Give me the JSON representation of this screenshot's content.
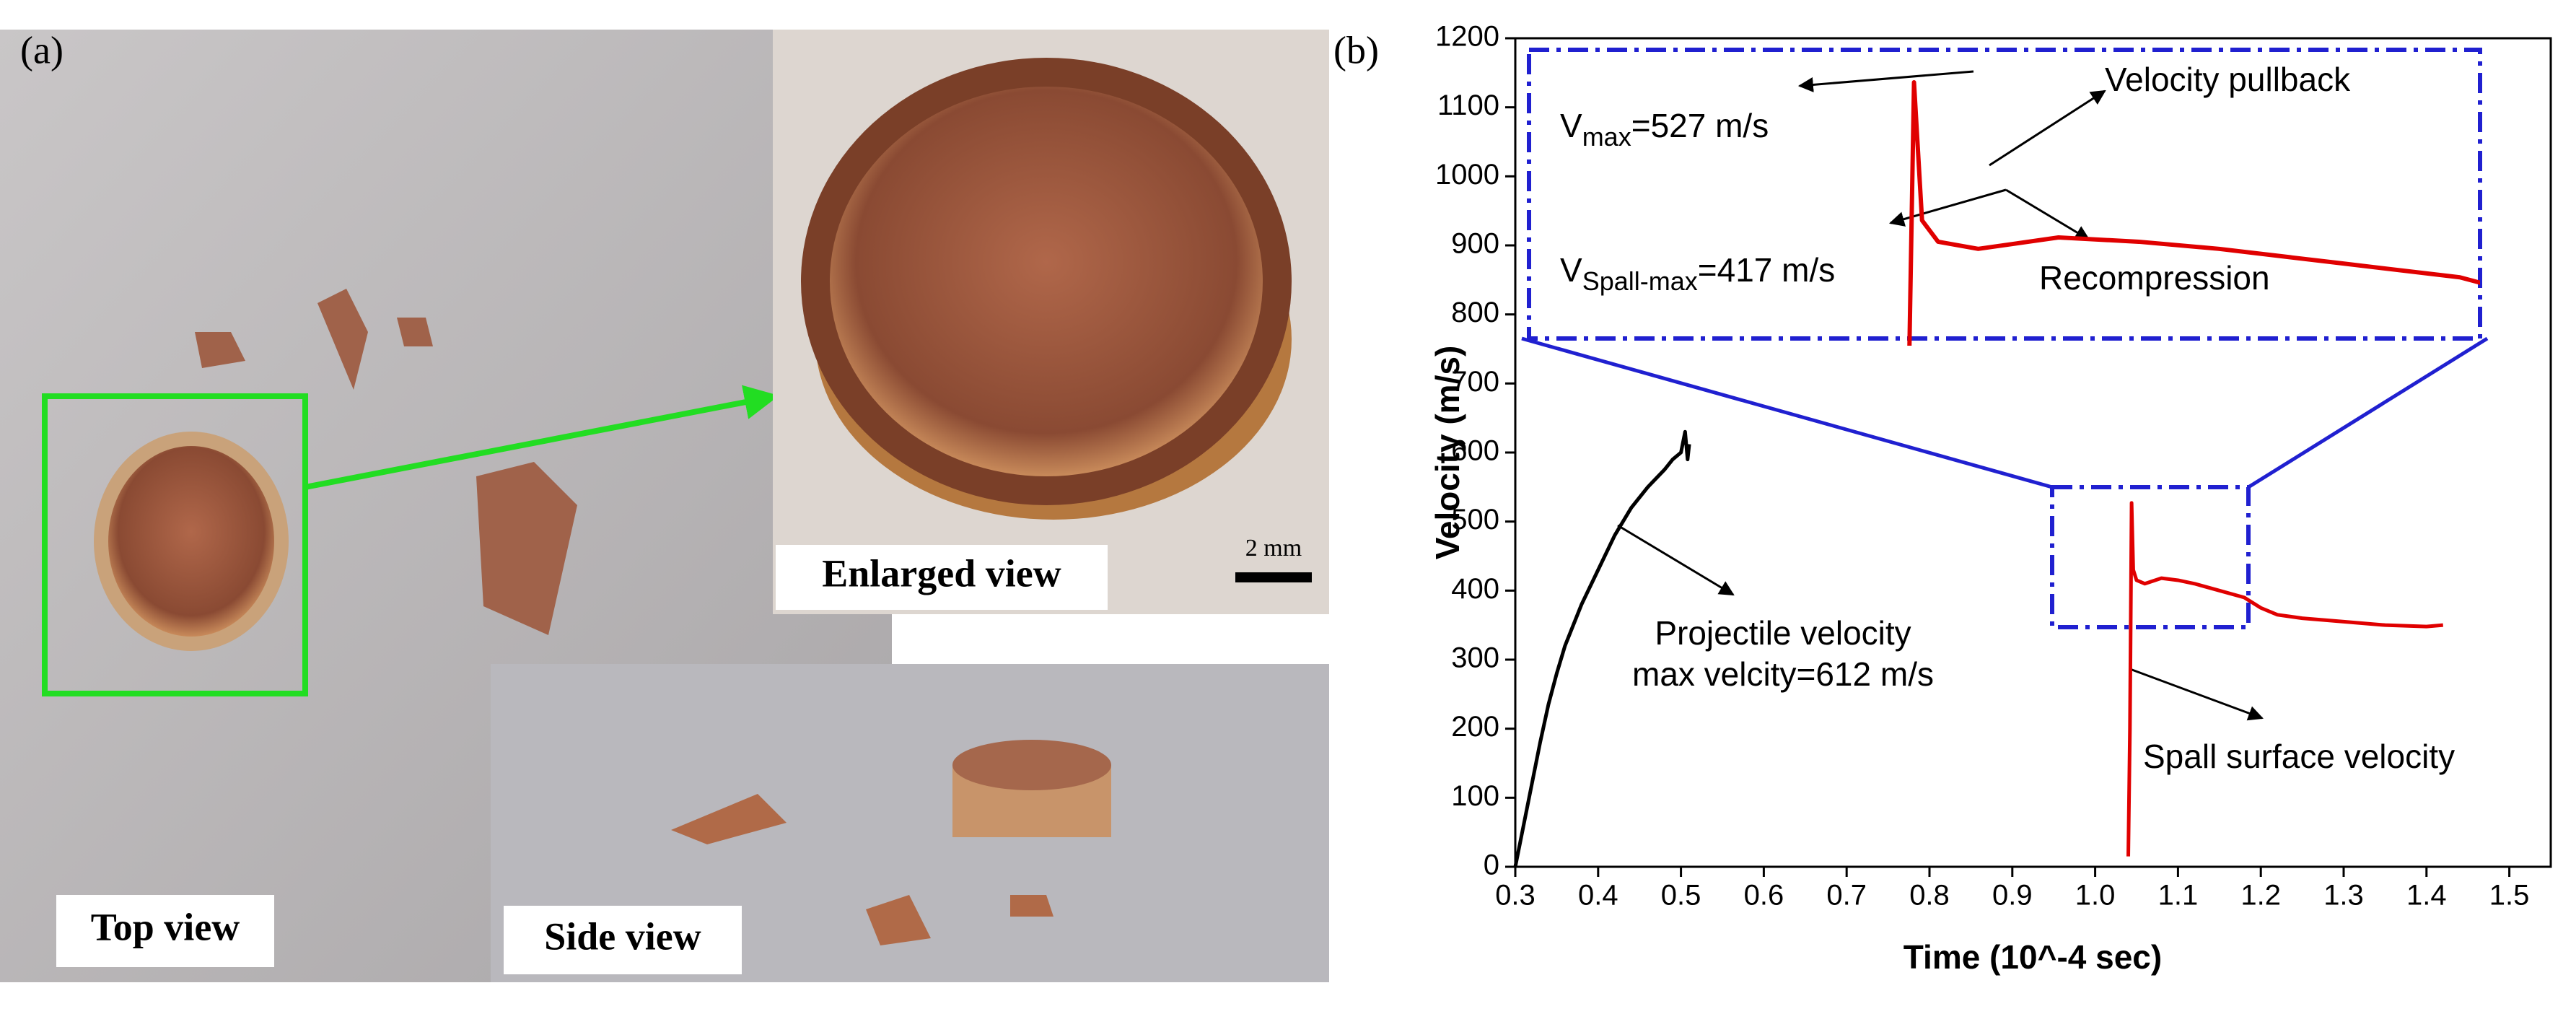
{
  "panel_labels": [
    "(a)",
    "(b)"
  ],
  "photo_labels": {
    "top": "Top view",
    "enlarged": "Enlarged view",
    "side": "Side view",
    "scale": "2 mm"
  },
  "chart_data": {
    "type": "line",
    "xlabel": "Time (10^-4 sec)",
    "ylabel": "Velocity (m/s)",
    "xlim": [
      0.3,
      1.55
    ],
    "ylim": [
      0,
      1200
    ],
    "xticks": [
      0.3,
      0.4,
      0.5,
      0.6,
      0.7,
      0.8,
      0.9,
      {
        "value": 1,
        "label": "1.0"
      },
      1.1,
      1.2,
      1.3,
      1.4,
      1.5
    ],
    "yticks": [
      0,
      100,
      200,
      300,
      400,
      500,
      600,
      700,
      800,
      900,
      1000,
      1100,
      1200
    ],
    "series": [
      {
        "name": "Projectile velocity",
        "color": "#000000",
        "x": [
          0.3,
          0.31,
          0.32,
          0.33,
          0.34,
          0.35,
          0.36,
          0.38,
          0.4,
          0.42,
          0.44,
          0.46,
          0.48,
          0.49,
          0.5,
          0.505,
          0.508,
          0.51
        ],
        "values": [
          0,
          60,
          120,
          180,
          235,
          280,
          320,
          380,
          430,
          480,
          520,
          550,
          575,
          590,
          600,
          630,
          590,
          612
        ]
      },
      {
        "name": "Spall surface velocity",
        "color": "#e00000",
        "x": [
          1.04,
          1.042,
          1.044,
          1.046,
          1.05,
          1.06,
          1.08,
          1.1,
          1.12,
          1.15,
          1.18,
          1.2,
          1.22,
          1.25,
          1.3,
          1.35,
          1.4,
          1.42
        ],
        "values": [
          15,
          200,
          527,
          430,
          415,
          410,
          418,
          415,
          410,
          400,
          390,
          375,
          365,
          360,
          355,
          350,
          348,
          350
        ]
      }
    ],
    "annotations": {
      "vmax": {
        "base": "V",
        "sub": "max",
        "rest": "=527 m/s"
      },
      "vspall": {
        "base": "V",
        "sub": "Spall-max",
        "rest": "=417 m/s"
      },
      "pullback": "Velocity pullback",
      "recompression": "Recompression",
      "projectile_max": "max velcity=612 m/s"
    }
  }
}
